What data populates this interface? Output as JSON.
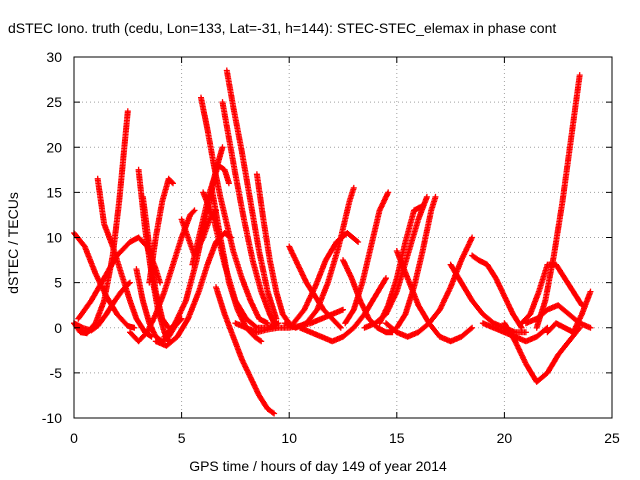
{
  "chart_data": {
    "type": "scatter",
    "title": "dSTEC Iono. truth (cedu, Lon=133, Lat=-31, h=144): STEC-STEC_elemax in phase cont",
    "xlabel": "GPS time / hours of day 149 of year 2014",
    "ylabel": "dSTEC  / TECUs",
    "xlim": [
      0,
      25
    ],
    "ylim": [
      -10,
      30
    ],
    "xticks": [
      0,
      5,
      10,
      15,
      20,
      25
    ],
    "yticks": [
      -10,
      -5,
      0,
      5,
      10,
      15,
      20,
      25,
      30
    ],
    "grid": true,
    "marker": "+",
    "color": "#ff0000",
    "series": [
      {
        "x": [
          0.0,
          0.4,
          0.8,
          1.1,
          1.5,
          1.9,
          2.2,
          2.5,
          2.6
        ],
        "y": [
          0.5,
          0.0,
          -0.3,
          0.2,
          1.5,
          3.0,
          4.0,
          4.8,
          5.0
        ]
      },
      {
        "x": [
          0.0,
          0.5,
          1.0,
          1.5,
          2.0,
          2.5,
          2.8
        ],
        "y": [
          10.5,
          9.0,
          6.0,
          3.5,
          1.5,
          0.2,
          0.0
        ]
      },
      {
        "x": [
          0.0,
          0.3,
          0.6,
          1.0,
          1.4,
          1.8,
          2.1,
          2.3,
          2.5
        ],
        "y": [
          0.5,
          -0.5,
          -0.6,
          0.5,
          3.0,
          8.0,
          14.0,
          19.0,
          24.0
        ]
      },
      {
        "x": [
          0.2,
          0.8,
          1.4,
          2.0,
          2.6,
          3.0,
          3.4,
          3.8,
          4.0
        ],
        "y": [
          1.0,
          3.0,
          5.5,
          8.0,
          9.5,
          10.0,
          9.0,
          6.5,
          5.0
        ]
      },
      {
        "x": [
          1.1,
          1.4,
          1.8,
          2.2,
          2.6,
          2.9,
          3.3,
          3.6
        ],
        "y": [
          16.5,
          11.5,
          9.0,
          6.0,
          3.0,
          1.0,
          -0.5,
          -1.0
        ]
      },
      {
        "x": [
          2.6,
          3.0,
          3.4,
          3.8,
          4.2,
          4.6,
          5.0,
          5.4,
          5.6
        ],
        "y": [
          -0.5,
          -1.5,
          -0.5,
          1.5,
          4.0,
          7.0,
          10.0,
          12.5,
          13.0
        ]
      },
      {
        "x": [
          2.9,
          3.2,
          3.5,
          3.8,
          4.1,
          4.4,
          4.7,
          5.0
        ],
        "y": [
          6.5,
          3.0,
          0.5,
          -1.0,
          -1.5,
          -1.0,
          0.2,
          1.0
        ]
      },
      {
        "x": [
          3.0,
          3.3,
          3.6,
          3.9,
          4.2,
          4.4
        ],
        "y": [
          17.5,
          11.0,
          6.0,
          2.0,
          -0.5,
          -1.5
        ]
      },
      {
        "x": [
          3.2,
          3.5,
          3.8,
          4.1,
          4.4
        ],
        "y": [
          14.5,
          9.0,
          4.0,
          1.0,
          0.0
        ]
      },
      {
        "x": [
          3.5,
          3.8,
          4.1,
          4.4,
          4.6
        ],
        "y": [
          5.0,
          10.0,
          14.0,
          16.5,
          16.0
        ]
      },
      {
        "x": [
          3.8,
          4.3,
          4.8,
          5.3,
          5.8,
          6.2,
          6.6,
          7.0,
          7.3
        ],
        "y": [
          -1.5,
          -2.0,
          -1.0,
          1.0,
          4.0,
          7.0,
          9.5,
          10.5,
          10.0
        ]
      },
      {
        "x": [
          4.2,
          4.7,
          5.2,
          5.7,
          6.2,
          6.6,
          6.9
        ],
        "y": [
          -1.0,
          0.5,
          3.0,
          7.5,
          13.0,
          17.5,
          20.0
        ]
      },
      {
        "x": [
          5.0,
          5.3,
          5.6,
          6.0,
          6.3,
          6.6
        ],
        "y": [
          12.0,
          10.0,
          8.0,
          10.0,
          12.0,
          13.0
        ]
      },
      {
        "x": [
          5.5,
          5.9,
          6.3,
          6.7,
          7.0,
          7.2
        ],
        "y": [
          7.0,
          11.0,
          15.0,
          18.0,
          17.5,
          16.0
        ]
      },
      {
        "x": [
          5.9,
          6.2,
          6.5,
          6.8,
          7.1,
          7.4,
          7.8,
          8.2,
          8.6,
          9.0
        ],
        "y": [
          25.5,
          22.0,
          18.0,
          14.5,
          11.5,
          8.5,
          5.5,
          3.0,
          1.0,
          0.5
        ]
      },
      {
        "x": [
          6.0,
          6.5,
          7.0,
          7.5,
          8.0,
          8.5,
          9.0,
          9.5
        ],
        "y": [
          15.0,
          12.0,
          7.0,
          3.0,
          1.0,
          0.0,
          0.0,
          0.5
        ]
      },
      {
        "x": [
          6.4,
          6.8,
          7.2,
          7.6,
          8.0,
          8.4,
          8.7
        ],
        "y": [
          15.5,
          10.0,
          5.0,
          2.0,
          0.0,
          -1.0,
          -1.5
        ]
      },
      {
        "x": [
          6.9,
          7.2,
          7.5,
          7.9,
          8.3,
          8.7,
          9.1,
          9.3
        ],
        "y": [
          25.0,
          21.0,
          17.0,
          12.0,
          7.5,
          4.0,
          1.5,
          0.5
        ]
      },
      {
        "x": [
          7.1,
          7.4,
          7.8,
          8.2,
          8.6,
          9.0,
          9.4
        ],
        "y": [
          28.5,
          24.5,
          19.5,
          14.0,
          8.5,
          4.0,
          1.0
        ]
      },
      {
        "x": [
          6.6,
          7.0,
          7.4,
          7.8,
          8.2,
          8.6,
          9.0,
          9.3
        ],
        "y": [
          4.5,
          1.5,
          -1.0,
          -3.5,
          -5.5,
          -7.5,
          -9.0,
          -9.5
        ]
      },
      {
        "x": [
          7.5,
          8.0,
          8.5,
          9.0,
          9.5,
          10.0,
          10.5,
          11.0,
          11.5,
          12.0,
          12.5
        ],
        "y": [
          0.5,
          0.0,
          -0.5,
          -0.2,
          0.0,
          0.0,
          0.2,
          0.5,
          1.0,
          1.5,
          2.0
        ]
      },
      {
        "x": [
          8.5,
          8.8,
          9.1,
          9.4,
          9.7,
          10.0
        ],
        "y": [
          17.0,
          12.0,
          7.5,
          4.0,
          1.5,
          0.5
        ]
      },
      {
        "x": [
          10.0,
          10.4,
          10.8,
          11.2,
          11.6,
          12.0,
          12.4
        ],
        "y": [
          9.0,
          7.0,
          5.0,
          3.5,
          2.0,
          1.0,
          0.0
        ]
      },
      {
        "x": [
          9.8,
          10.3,
          10.8,
          11.3,
          11.8,
          12.3,
          12.8,
          13.0
        ],
        "y": [
          0.5,
          0.0,
          0.5,
          2.0,
          5.0,
          9.0,
          14.0,
          15.5
        ]
      },
      {
        "x": [
          10.2,
          10.7,
          11.2,
          11.7,
          12.2,
          12.7,
          13.2
        ],
        "y": [
          0.5,
          2.0,
          4.5,
          7.5,
          9.5,
          10.5,
          9.5
        ]
      },
      {
        "x": [
          10.5,
          11.0,
          11.5,
          12.0,
          12.5,
          13.0,
          13.5,
          14.0,
          14.5
        ],
        "y": [
          0.0,
          -0.5,
          -1.0,
          -1.5,
          -1.0,
          0.0,
          1.5,
          3.5,
          5.5
        ]
      },
      {
        "x": [
          12.5,
          12.9,
          13.3,
          13.7,
          14.1,
          14.5,
          14.8
        ],
        "y": [
          7.5,
          5.5,
          3.0,
          1.0,
          0.0,
          -0.5,
          -0.5
        ]
      },
      {
        "x": [
          12.6,
          13.0,
          13.4,
          13.8,
          14.2,
          14.6
        ],
        "y": [
          0.5,
          2.0,
          5.0,
          9.0,
          13.0,
          15.0
        ]
      },
      {
        "x": [
          13.5,
          14.0,
          14.5,
          15.0,
          15.5,
          16.0,
          16.4
        ],
        "y": [
          0.0,
          0.5,
          1.5,
          4.0,
          8.0,
          12.0,
          14.5
        ]
      },
      {
        "x": [
          14.2,
          14.6,
          15.0,
          15.4,
          15.8,
          16.2
        ],
        "y": [
          0.5,
          2.5,
          5.5,
          9.5,
          13.0,
          13.5
        ]
      },
      {
        "x": [
          15.0,
          15.5,
          16.0,
          16.5,
          17.0,
          17.5,
          18.0,
          18.5
        ],
        "y": [
          8.5,
          5.5,
          2.5,
          0.5,
          -1.0,
          -1.5,
          -1.0,
          0.0
        ]
      },
      {
        "x": [
          14.5,
          15.0,
          15.5,
          16.0,
          16.5,
          17.0,
          17.5,
          18.0,
          18.5
        ],
        "y": [
          0.5,
          -0.5,
          -1.0,
          -0.5,
          0.5,
          2.0,
          4.5,
          7.5,
          10.0
        ]
      },
      {
        "x": [
          15.0,
          15.4,
          15.8,
          16.2,
          16.6,
          16.8
        ],
        "y": [
          0.0,
          1.5,
          4.5,
          8.5,
          13.0,
          14.5
        ]
      },
      {
        "x": [
          17.5,
          18.0,
          18.5,
          19.0,
          19.5,
          20.0,
          20.5,
          21.0
        ],
        "y": [
          7.0,
          5.0,
          3.0,
          1.5,
          0.5,
          0.0,
          -0.5,
          -0.5
        ]
      },
      {
        "x": [
          18.5,
          18.8,
          19.2,
          19.6,
          20.0,
          20.4,
          20.8
        ],
        "y": [
          8.0,
          7.5,
          7.0,
          5.5,
          3.5,
          1.5,
          0.0
        ]
      },
      {
        "x": [
          19.0,
          19.5,
          20.0,
          20.5,
          21.0,
          21.5,
          22.0
        ],
        "y": [
          0.5,
          0.0,
          -0.5,
          -1.0,
          -1.5,
          -1.0,
          0.0
        ]
      },
      {
        "x": [
          20.0,
          20.5,
          21.0,
          21.5,
          22.0,
          22.5,
          23.0,
          23.5
        ],
        "y": [
          0.5,
          -1.5,
          -4.0,
          -6.0,
          -5.0,
          -3.0,
          -1.5,
          0.0
        ]
      },
      {
        "x": [
          20.8,
          21.2,
          21.6,
          22.0,
          22.4,
          22.8,
          23.2,
          23.6
        ],
        "y": [
          0.5,
          1.5,
          4.0,
          7.0,
          7.0,
          5.5,
          4.0,
          2.5
        ]
      },
      {
        "x": [
          21.5,
          21.9,
          22.3,
          22.7,
          23.1,
          23.5
        ],
        "y": [
          0.0,
          3.0,
          8.0,
          14.0,
          21.0,
          28.0
        ]
      },
      {
        "x": [
          22.0,
          22.4,
          22.8,
          23.2,
          23.6,
          24.0
        ],
        "y": [
          -0.5,
          0.5,
          0.0,
          -0.5,
          1.5,
          4.0
        ]
      },
      {
        "x": [
          21.0,
          21.5,
          22.0,
          22.5,
          23.0,
          23.5,
          24.0
        ],
        "y": [
          0.5,
          1.0,
          2.0,
          2.5,
          1.5,
          0.5,
          0.0
        ]
      }
    ]
  }
}
